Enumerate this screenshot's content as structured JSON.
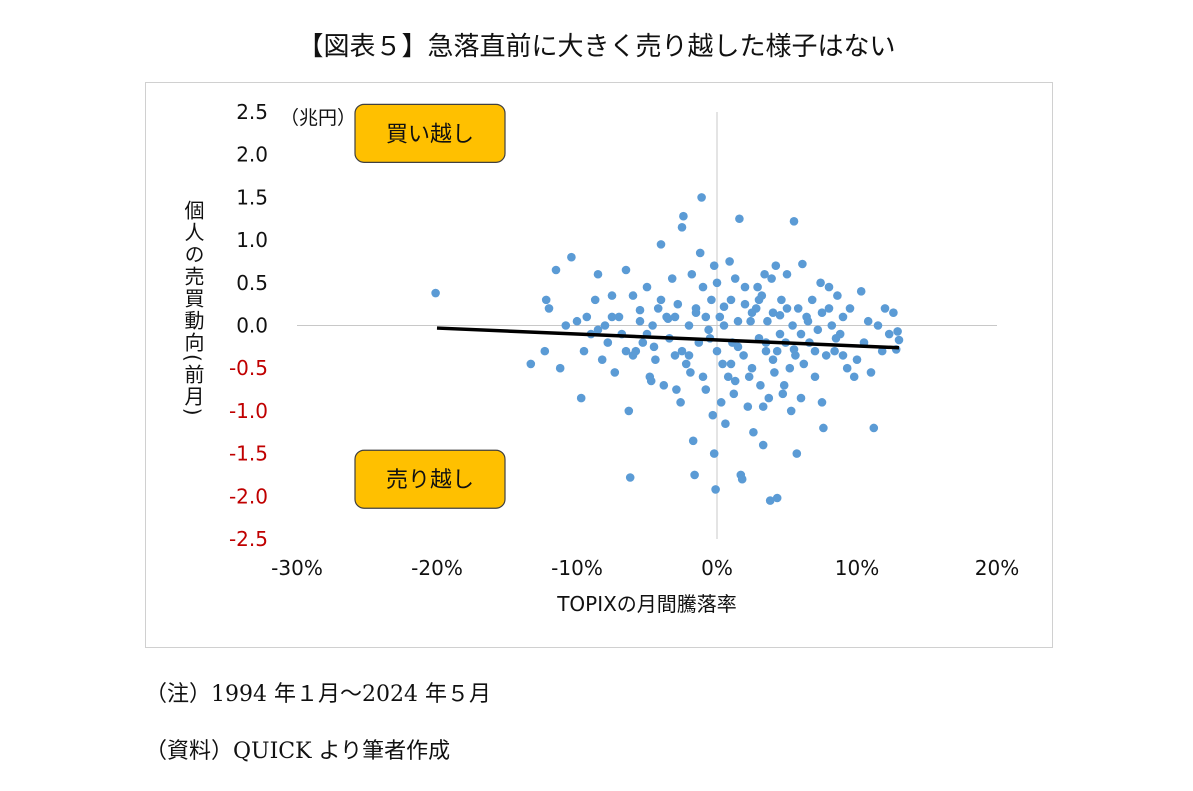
{
  "page": {
    "title": "【図表５】急落直前に大きく売り越した様子はない",
    "notes": [
      "（注）1994 年１月～2024 年５月",
      "（資料）QUICK より筆者作成"
    ]
  },
  "chart_data": {
    "type": "scatter",
    "xlabel": "TOPIXの月間騰落率",
    "ylabel": "個人の売買動向(前月)",
    "y_unit_label": "（兆円）",
    "xlim": [
      -0.3,
      0.2
    ],
    "ylim": [
      -2.5,
      2.5
    ],
    "x_ticks": [
      {
        "value": -0.3,
        "label": "-30%"
      },
      {
        "value": -0.2,
        "label": "-20%"
      },
      {
        "value": -0.1,
        "label": "-10%"
      },
      {
        "value": 0.0,
        "label": "0%"
      },
      {
        "value": 0.1,
        "label": "10%"
      },
      {
        "value": 0.2,
        "label": "20%"
      }
    ],
    "y_ticks": [
      {
        "value": 2.5,
        "label": "2.5"
      },
      {
        "value": 2.0,
        "label": "2.0"
      },
      {
        "value": 1.5,
        "label": "1.5"
      },
      {
        "value": 1.0,
        "label": "1.0"
      },
      {
        "value": 0.5,
        "label": "0.5"
      },
      {
        "value": 0.0,
        "label": "0.0"
      },
      {
        "value": -0.5,
        "label": "-0.5"
      },
      {
        "value": -1.0,
        "label": "-1.0"
      },
      {
        "value": -1.5,
        "label": "-1.5"
      },
      {
        "value": -2.0,
        "label": "-2.0"
      },
      {
        "value": -2.5,
        "label": "-2.5"
      }
    ],
    "negative_tick_color": "#c00000",
    "point_color": "#5b9bd5",
    "trend_color": "#000000",
    "annotation_fill": "#ffc000",
    "annotations": [
      {
        "text": "買い越し",
        "x": -0.205,
        "y": 2.25
      },
      {
        "text": "売り越し",
        "x": -0.205,
        "y": -1.8
      }
    ],
    "trendline": {
      "x": [
        -0.2,
        0.13
      ],
      "y": [
        -0.03,
        -0.26
      ]
    },
    "points": [
      [
        -0.201,
        0.38
      ],
      [
        -0.133,
        -0.45
      ],
      [
        -0.123,
        -0.3
      ],
      [
        -0.122,
        0.3
      ],
      [
        -0.12,
        0.2
      ],
      [
        -0.115,
        0.65
      ],
      [
        -0.112,
        -0.5
      ],
      [
        -0.108,
        0.0
      ],
      [
        -0.104,
        0.8
      ],
      [
        -0.1,
        0.05
      ],
      [
        -0.097,
        -0.85
      ],
      [
        -0.095,
        -0.3
      ],
      [
        -0.093,
        0.1
      ],
      [
        -0.09,
        -0.1
      ],
      [
        -0.087,
        0.3
      ],
      [
        -0.085,
        0.6
      ],
      [
        -0.082,
        -0.4
      ],
      [
        -0.08,
        0.0
      ],
      [
        -0.078,
        -0.2
      ],
      [
        -0.075,
        0.35
      ],
      [
        -0.073,
        -0.55
      ],
      [
        -0.07,
        0.1
      ],
      [
        -0.068,
        -0.1
      ],
      [
        -0.065,
        0.65
      ],
      [
        -0.063,
        -1.0
      ],
      [
        -0.062,
        -1.78
      ],
      [
        -0.06,
        0.35
      ],
      [
        -0.058,
        -0.3
      ],
      [
        -0.055,
        0.05
      ],
      [
        -0.053,
        -0.2
      ],
      [
        -0.05,
        0.45
      ],
      [
        -0.048,
        -0.6
      ],
      [
        -0.046,
        0.0
      ],
      [
        -0.044,
        -0.4
      ],
      [
        -0.042,
        0.2
      ],
      [
        -0.04,
        0.95
      ],
      [
        -0.038,
        -0.7
      ],
      [
        -0.036,
        0.1
      ],
      [
        -0.034,
        -0.15
      ],
      [
        -0.032,
        0.55
      ],
      [
        -0.03,
        -0.35
      ],
      [
        -0.028,
        0.25
      ],
      [
        -0.026,
        -0.9
      ],
      [
        -0.025,
        1.15
      ],
      [
        -0.024,
        1.28
      ],
      [
        -0.022,
        -0.45
      ],
      [
        -0.02,
        0.0
      ],
      [
        -0.018,
        0.6
      ],
      [
        -0.017,
        -1.35
      ],
      [
        -0.016,
        -1.75
      ],
      [
        -0.015,
        0.2
      ],
      [
        -0.013,
        -0.2
      ],
      [
        -0.012,
        0.85
      ],
      [
        -0.01,
        -0.6
      ],
      [
        -0.008,
        0.1
      ],
      [
        -0.006,
        -0.05
      ],
      [
        -0.004,
        0.3
      ],
      [
        -0.003,
        -1.05
      ],
      [
        -0.002,
        0.7
      ],
      [
        0.0,
        -0.3
      ],
      [
        0.002,
        0.1
      ],
      [
        0.004,
        -0.45
      ],
      [
        0.005,
        0.0
      ],
      [
        0.006,
        -1.15
      ],
      [
        0.008,
        -0.6
      ],
      [
        0.01,
        0.3
      ],
      [
        0.011,
        -0.2
      ],
      [
        0.012,
        -0.8
      ],
      [
        0.013,
        0.55
      ],
      [
        0.015,
        0.05
      ],
      [
        0.016,
        1.25
      ],
      [
        0.017,
        -1.75
      ],
      [
        0.018,
        -1.8
      ],
      [
        0.019,
        -0.35
      ],
      [
        0.02,
        0.45
      ],
      [
        0.022,
        -0.95
      ],
      [
        0.024,
        0.05
      ],
      [
        0.025,
        -0.5
      ],
      [
        0.026,
        -1.25
      ],
      [
        0.028,
        0.2
      ],
      [
        0.03,
        -0.15
      ],
      [
        0.031,
        -0.7
      ],
      [
        0.032,
        0.35
      ],
      [
        0.033,
        -1.4
      ],
      [
        0.034,
        0.6
      ],
      [
        0.035,
        -0.3
      ],
      [
        0.036,
        0.05
      ],
      [
        0.037,
        -0.85
      ],
      [
        0.038,
        -2.05
      ],
      [
        0.04,
        0.15
      ],
      [
        0.041,
        -0.55
      ],
      [
        0.042,
        0.7
      ],
      [
        0.043,
        -2.02
      ],
      [
        0.045,
        -0.1
      ],
      [
        0.046,
        0.3
      ],
      [
        0.048,
        -0.7
      ],
      [
        0.049,
        -0.2
      ],
      [
        0.05,
        0.6
      ],
      [
        0.052,
        -0.5
      ],
      [
        0.053,
        -1.0
      ],
      [
        0.054,
        0.0
      ],
      [
        0.055,
        1.22
      ],
      [
        0.056,
        -0.35
      ],
      [
        0.057,
        -1.5
      ],
      [
        0.058,
        0.2
      ],
      [
        0.06,
        -0.85
      ],
      [
        0.061,
        0.72
      ],
      [
        0.062,
        -0.45
      ],
      [
        0.064,
        0.1
      ],
      [
        0.066,
        -0.2
      ],
      [
        0.068,
        0.3
      ],
      [
        0.07,
        -0.6
      ],
      [
        0.072,
        -0.05
      ],
      [
        0.074,
        0.5
      ],
      [
        0.075,
        -0.9
      ],
      [
        0.076,
        -1.2
      ],
      [
        0.078,
        -0.35
      ],
      [
        0.08,
        0.2
      ],
      [
        0.082,
        0.0
      ],
      [
        0.084,
        -0.3
      ],
      [
        0.086,
        0.35
      ],
      [
        0.088,
        -0.1
      ],
      [
        0.09,
        0.1
      ],
      [
        0.093,
        -0.5
      ],
      [
        0.095,
        0.2
      ],
      [
        0.098,
        -0.6
      ],
      [
        0.1,
        -0.4
      ],
      [
        0.103,
        0.4
      ],
      [
        0.105,
        -0.2
      ],
      [
        0.108,
        0.05
      ],
      [
        0.11,
        -0.55
      ],
      [
        0.112,
        -1.2
      ],
      [
        0.115,
        0.0
      ],
      [
        0.118,
        -0.3
      ],
      [
        0.12,
        0.2
      ],
      [
        0.123,
        -0.1
      ],
      [
        0.126,
        0.15
      ],
      [
        0.129,
        -0.07
      ],
      [
        0.13,
        -0.17
      ],
      [
        0.128,
        -0.28
      ],
      [
        -0.045,
        -0.25
      ],
      [
        -0.035,
        0.08
      ],
      [
        -0.025,
        -0.3
      ],
      [
        -0.015,
        0.15
      ],
      [
        -0.005,
        -0.15
      ],
      [
        0.005,
        0.22
      ],
      [
        0.015,
        -0.25
      ],
      [
        0.025,
        0.15
      ],
      [
        0.035,
        -0.2
      ],
      [
        0.045,
        0.12
      ],
      [
        0.055,
        -0.28
      ],
      [
        0.065,
        0.05
      ],
      [
        -0.055,
        0.18
      ],
      [
        -0.065,
        -0.3
      ],
      [
        -0.075,
        0.1
      ],
      [
        -0.085,
        -0.05
      ],
      [
        0.075,
        0.15
      ],
      [
        0.085,
        -0.15
      ],
      [
        0.03,
        0.3
      ],
      [
        -0.01,
        0.45
      ],
      [
        0.0,
        0.5
      ],
      [
        0.01,
        -0.45
      ],
      [
        0.02,
        0.25
      ],
      [
        -0.02,
        -0.35
      ],
      [
        -0.03,
        0.1
      ],
      [
        0.04,
        -0.4
      ],
      [
        0.05,
        0.2
      ],
      [
        0.06,
        -0.1
      ],
      [
        -0.04,
        0.3
      ],
      [
        -0.05,
        -0.1
      ],
      [
        -0.06,
        -0.35
      ],
      [
        0.07,
        -0.3
      ],
      [
        0.08,
        0.45
      ],
      [
        0.09,
        -0.35
      ],
      [
        -0.008,
        -0.75
      ],
      [
        0.003,
        -0.9
      ],
      [
        0.013,
        -0.65
      ],
      [
        0.023,
        -0.6
      ],
      [
        0.033,
        -0.95
      ],
      [
        0.043,
        -0.3
      ],
      [
        -0.019,
        -0.55
      ],
      [
        -0.029,
        -0.75
      ],
      [
        0.009,
        0.75
      ],
      [
        0.029,
        0.45
      ],
      [
        0.039,
        0.55
      ],
      [
        -0.011,
        1.5
      ],
      [
        -0.002,
        -1.5
      ],
      [
        -0.001,
        -1.92
      ],
      [
        0.047,
        -0.8
      ],
      [
        -0.047,
        -0.65
      ]
    ]
  }
}
